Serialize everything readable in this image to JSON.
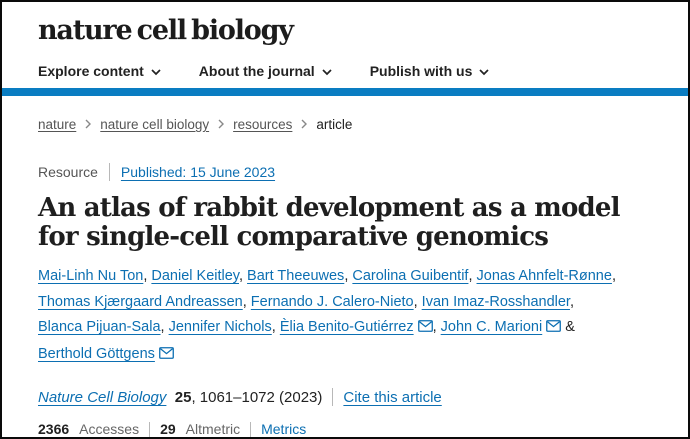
{
  "colors": {
    "accent_bar": "#0a7dc2",
    "link_blue": "#0c6fb2",
    "text_dark": "#222222",
    "text_gray": "#555555"
  },
  "header": {
    "logo": "nature cell biology",
    "nav": [
      {
        "label": "Explore content"
      },
      {
        "label": "About the journal"
      },
      {
        "label": "Publish with us"
      }
    ]
  },
  "breadcrumb": {
    "links": [
      "nature",
      "nature cell biology",
      "resources"
    ],
    "current": "article"
  },
  "article": {
    "type_label": "Resource",
    "published_link": "Published: 15 June 2023",
    "title": "An atlas of rabbit development as a model for single-cell comparative genomics",
    "authors": [
      {
        "name": "Mai-Linh Nu Ton",
        "email": false
      },
      {
        "name": "Daniel Keitley",
        "email": false
      },
      {
        "name": "Bart Theeuwes",
        "email": false
      },
      {
        "name": "Carolina Guibentif",
        "email": false
      },
      {
        "name": "Jonas Ahnfelt-Rønne",
        "email": false
      },
      {
        "name": "Thomas Kjærgaard Andreassen",
        "email": false
      },
      {
        "name": "Fernando J. Calero-Nieto",
        "email": false
      },
      {
        "name": "Ivan Imaz-Rosshandler",
        "email": false
      },
      {
        "name": "Blanca Pijuan-Sala",
        "email": false
      },
      {
        "name": "Jennifer Nichols",
        "email": false
      },
      {
        "name": "Èlia Benito-Gutiérrez",
        "email": true
      },
      {
        "name": "John C. Marioni",
        "email": true
      },
      {
        "name": "Berthold Göttgens",
        "email": true
      }
    ],
    "citation": {
      "journal": "Nature Cell Biology",
      "volume": "25",
      "pages": ", 1061–1072 (2023)",
      "cite_link": "Cite this article"
    },
    "metrics": {
      "accesses_count": "2366",
      "accesses_label": "Accesses",
      "altmetric_count": "29",
      "altmetric_label": "Altmetric",
      "metrics_link": "Metrics"
    }
  }
}
